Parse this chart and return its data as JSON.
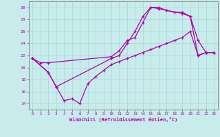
{
  "xlabel": "Windchill (Refroidissement éolien,°C)",
  "ylabel": "",
  "bg_color": "#c8ecec",
  "grid_color": "#b0d8d8",
  "line_color": "#aa00aa",
  "xlim": [
    -0.5,
    23.5
  ],
  "ylim": [
    13.0,
    31.0
  ],
  "xticks": [
    0,
    1,
    2,
    3,
    4,
    5,
    6,
    7,
    8,
    9,
    10,
    11,
    12,
    13,
    14,
    15,
    16,
    17,
    18,
    19,
    20,
    21,
    22,
    23
  ],
  "yticks": [
    14,
    16,
    18,
    20,
    22,
    24,
    26,
    28,
    30
  ],
  "line1_x": [
    0,
    1,
    2,
    10,
    11,
    12,
    13,
    14,
    15,
    16,
    17,
    18,
    19,
    20,
    21,
    22,
    23
  ],
  "line1_y": [
    21.5,
    20.8,
    20.8,
    21.8,
    22.8,
    24.5,
    25.0,
    27.5,
    30.0,
    30.0,
    29.5,
    29.2,
    29.2,
    28.5,
    24.5,
    22.5,
    22.5
  ],
  "line2_x": [
    0,
    2,
    3,
    10,
    11,
    12,
    13,
    14,
    15,
    16,
    17,
    19,
    20,
    21,
    22,
    23
  ],
  "line2_y": [
    21.5,
    19.2,
    16.8,
    21.5,
    22.0,
    24.0,
    26.0,
    28.5,
    30.0,
    29.8,
    29.5,
    29.0,
    28.5,
    22.0,
    22.5,
    22.5
  ],
  "line3_x": [
    0,
    2,
    3,
    4,
    5,
    6,
    7,
    8,
    9,
    10,
    11,
    12,
    13,
    14,
    15,
    16,
    17,
    18,
    19,
    20,
    21,
    22,
    23
  ],
  "line3_y": [
    21.5,
    19.2,
    16.8,
    14.5,
    14.8,
    14.0,
    17.3,
    18.5,
    19.5,
    20.5,
    21.0,
    21.5,
    22.0,
    22.5,
    23.0,
    23.5,
    24.0,
    24.5,
    25.0,
    26.0,
    22.0,
    22.5,
    22.5
  ]
}
